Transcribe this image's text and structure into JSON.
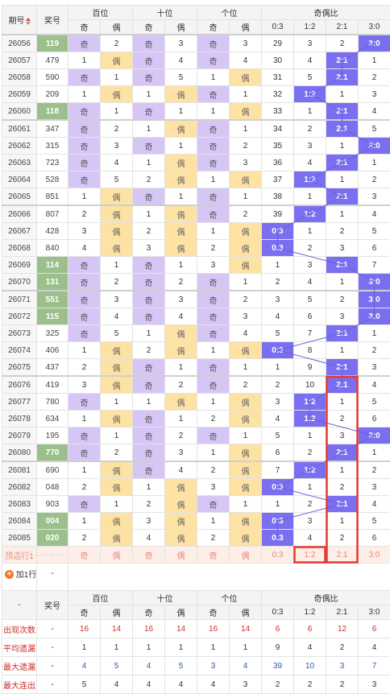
{
  "header": {
    "period": "期号",
    "prize": "奖号",
    "groups": [
      "百位",
      "十位",
      "个位",
      "奇偶比"
    ],
    "sub": [
      "奇",
      "偶",
      "奇",
      "偶",
      "奇",
      "偶",
      "0:3",
      "1:2",
      "2:1",
      "3:0"
    ]
  },
  "colors": {
    "odd": "#d6c6f6",
    "even": "#fde2a4",
    "ratio": "#7a6ff0",
    "highlight": "#e53935",
    "prize_highlight": "#9cc08b"
  },
  "rows": [
    {
      "p": "26056",
      "n": "119",
      "g": true,
      "c": [
        "奇",
        "2",
        "奇",
        "3",
        "奇",
        "3",
        "29",
        "3",
        "2",
        "3:0"
      ]
    },
    {
      "p": "26057",
      "n": "479",
      "g": false,
      "c": [
        "1",
        "偶",
        "奇",
        "4",
        "奇",
        "4",
        "30",
        "4",
        "2:1",
        "1"
      ]
    },
    {
      "p": "26058",
      "n": "590",
      "g": false,
      "c": [
        "奇",
        "1",
        "奇",
        "5",
        "1",
        "偶",
        "31",
        "5",
        "2:1",
        "2"
      ]
    },
    {
      "p": "26059",
      "n": "209",
      "g": false,
      "c": [
        "1",
        "偶",
        "1",
        "偶",
        "奇",
        "1",
        "32",
        "1:2",
        "1",
        "3"
      ]
    },
    {
      "p": "26060",
      "n": "118",
      "g": true,
      "c": [
        "奇",
        "1",
        "奇",
        "1",
        "1",
        "偶",
        "33",
        "1",
        "2:1",
        "4"
      ]
    },
    {
      "p": "26061",
      "n": "347",
      "g": false,
      "c": [
        "奇",
        "2",
        "1",
        "偶",
        "奇",
        "1",
        "34",
        "2",
        "2:1",
        "5"
      ]
    },
    {
      "p": "26062",
      "n": "315",
      "g": false,
      "c": [
        "奇",
        "3",
        "奇",
        "1",
        "奇",
        "2",
        "35",
        "3",
        "1",
        "3:0"
      ]
    },
    {
      "p": "26063",
      "n": "723",
      "g": false,
      "c": [
        "奇",
        "4",
        "1",
        "偶",
        "奇",
        "3",
        "36",
        "4",
        "2:1",
        "1"
      ]
    },
    {
      "p": "26064",
      "n": "528",
      "g": false,
      "c": [
        "奇",
        "5",
        "2",
        "偶",
        "1",
        "偶",
        "37",
        "1:2",
        "1",
        "2"
      ]
    },
    {
      "p": "26065",
      "n": "851",
      "g": false,
      "c": [
        "1",
        "偶",
        "奇",
        "1",
        "奇",
        "1",
        "38",
        "1",
        "2:1",
        "3"
      ]
    },
    {
      "p": "26066",
      "n": "807",
      "g": false,
      "c": [
        "2",
        "偶",
        "1",
        "偶",
        "奇",
        "2",
        "39",
        "1:2",
        "1",
        "4"
      ]
    },
    {
      "p": "26067",
      "n": "428",
      "g": false,
      "c": [
        "3",
        "偶",
        "2",
        "偶",
        "1",
        "偶",
        "0:3",
        "1",
        "2",
        "5"
      ]
    },
    {
      "p": "26068",
      "n": "840",
      "g": false,
      "c": [
        "4",
        "偶",
        "3",
        "偶",
        "2",
        "偶",
        "0:3",
        "2",
        "3",
        "6"
      ]
    },
    {
      "p": "26069",
      "n": "114",
      "g": true,
      "c": [
        "奇",
        "1",
        "奇",
        "1",
        "3",
        "偶",
        "1",
        "3",
        "2:1",
        "7"
      ]
    },
    {
      "p": "26070",
      "n": "131",
      "g": true,
      "c": [
        "奇",
        "2",
        "奇",
        "2",
        "奇",
        "1",
        "2",
        "4",
        "1",
        "3:0"
      ]
    },
    {
      "p": "26071",
      "n": "551",
      "g": true,
      "c": [
        "奇",
        "3",
        "奇",
        "3",
        "奇",
        "2",
        "3",
        "5",
        "2",
        "3:0"
      ]
    },
    {
      "p": "26072",
      "n": "115",
      "g": true,
      "c": [
        "奇",
        "4",
        "奇",
        "4",
        "奇",
        "3",
        "4",
        "6",
        "3",
        "3:0"
      ]
    },
    {
      "p": "26073",
      "n": "325",
      "g": false,
      "c": [
        "奇",
        "5",
        "1",
        "偶",
        "奇",
        "4",
        "5",
        "7",
        "2:1",
        "1"
      ]
    },
    {
      "p": "26074",
      "n": "406",
      "g": false,
      "c": [
        "1",
        "偶",
        "2",
        "偶",
        "1",
        "偶",
        "0:3",
        "8",
        "1",
        "2"
      ]
    },
    {
      "p": "26075",
      "n": "437",
      "g": false,
      "c": [
        "2",
        "偶",
        "奇",
        "1",
        "奇",
        "1",
        "1",
        "9",
        "2:1",
        "3"
      ]
    },
    {
      "p": "26076",
      "n": "419",
      "g": false,
      "c": [
        "3",
        "偶",
        "奇",
        "2",
        "奇",
        "2",
        "2",
        "10",
        "2:1",
        "4"
      ]
    },
    {
      "p": "26077",
      "n": "780",
      "g": false,
      "c": [
        "奇",
        "1",
        "1",
        "偶",
        "1",
        "偶",
        "3",
        "1:2",
        "1",
        "5"
      ]
    },
    {
      "p": "26078",
      "n": "634",
      "g": false,
      "c": [
        "1",
        "偶",
        "奇",
        "1",
        "2",
        "偶",
        "4",
        "1:2",
        "2",
        "6"
      ]
    },
    {
      "p": "26079",
      "n": "195",
      "g": false,
      "c": [
        "奇",
        "1",
        "奇",
        "2",
        "奇",
        "1",
        "5",
        "1",
        "3",
        "3:0"
      ]
    },
    {
      "p": "26080",
      "n": "770",
      "g": true,
      "c": [
        "奇",
        "2",
        "奇",
        "3",
        "1",
        "偶",
        "6",
        "2",
        "2:1",
        "1"
      ]
    },
    {
      "p": "26081",
      "n": "690",
      "g": false,
      "c": [
        "1",
        "偶",
        "奇",
        "4",
        "2",
        "偶",
        "7",
        "1:2",
        "1",
        "2"
      ]
    },
    {
      "p": "26082",
      "n": "048",
      "g": false,
      "c": [
        "2",
        "偶",
        "1",
        "偶",
        "3",
        "偶",
        "0:3",
        "1",
        "2",
        "3"
      ]
    },
    {
      "p": "26083",
      "n": "903",
      "g": false,
      "c": [
        "奇",
        "1",
        "2",
        "偶",
        "奇",
        "1",
        "1",
        "2",
        "2:1",
        "4"
      ]
    },
    {
      "p": "26084",
      "n": "004",
      "g": true,
      "c": [
        "1",
        "偶",
        "3",
        "偶",
        "1",
        "偶",
        "0:3",
        "3",
        "1",
        "5"
      ]
    },
    {
      "p": "26085",
      "n": "020",
      "g": true,
      "c": [
        "2",
        "偶",
        "4",
        "偶",
        "2",
        "偶",
        "0:3",
        "4",
        "2",
        "6"
      ]
    }
  ],
  "preselect": {
    "label": "预选行1",
    "num": "-",
    "cells": [
      "奇",
      "偶",
      "奇",
      "偶",
      "奇",
      "偶",
      "0:3",
      "1:2",
      "2:1",
      "3:0"
    ]
  },
  "add_row": {
    "label": "加1行",
    "value": "-"
  },
  "stats": {
    "dash": "-",
    "prize": "奖号",
    "rows": [
      {
        "label": "出现次数",
        "dash": "-",
        "vals": [
          "16",
          "14",
          "16",
          "14",
          "16",
          "14",
          "6",
          "6",
          "12",
          "6"
        ]
      },
      {
        "label": "平均遗漏",
        "dash": "-",
        "vals": [
          "1",
          "1",
          "1",
          "1",
          "1",
          "1",
          "9",
          "4",
          "2",
          "4"
        ]
      },
      {
        "label": "最大遗漏",
        "dash": "-",
        "vals": [
          "4",
          "5",
          "4",
          "5",
          "3",
          "4",
          "39",
          "10",
          "3",
          "7"
        ]
      },
      {
        "label": "最大连出",
        "dash": "-",
        "vals": [
          "5",
          "4",
          "4",
          "4",
          "4",
          "3",
          "2",
          "2",
          "2",
          "3"
        ]
      }
    ]
  }
}
